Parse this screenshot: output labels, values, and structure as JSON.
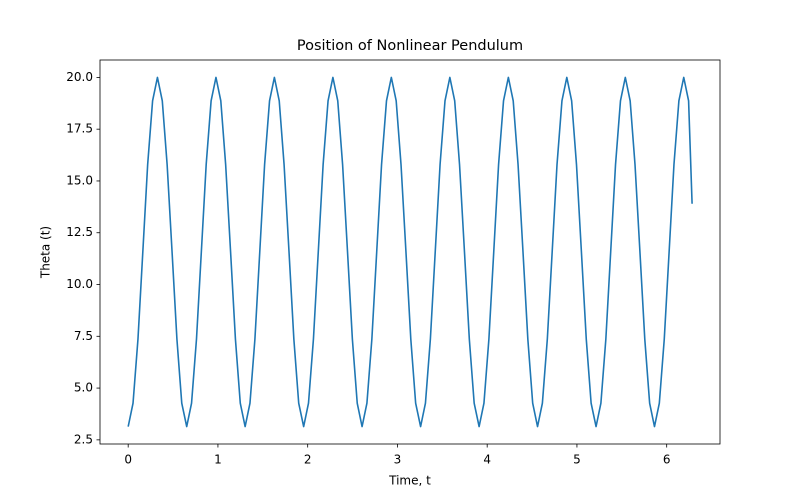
{
  "chart_data": {
    "type": "line",
    "title": "Position of Nonlinear Pendulum",
    "x_label": "Time, t",
    "y_label": "Theta (t)",
    "x": [
      0,
      0.054,
      0.109,
      0.163,
      0.217,
      0.272,
      0.326,
      0.38,
      0.434,
      0.489,
      0.543,
      0.597,
      0.652,
      0.706,
      0.761,
      0.815,
      0.869,
      0.924,
      0.978,
      1.032,
      1.086,
      1.141,
      1.195,
      1.249,
      1.303,
      1.357,
      1.412,
      1.466,
      1.52,
      1.575,
      1.629,
      1.683,
      1.737,
      1.792,
      1.846,
      1.9,
      1.955,
      2.009,
      2.064,
      2.118,
      2.172,
      2.227,
      2.281,
      2.335,
      2.389,
      2.444,
      2.498,
      2.552,
      2.606,
      2.66,
      2.715,
      2.769,
      2.823,
      2.878,
      2.932,
      2.986,
      3.04,
      3.095,
      3.149,
      3.203,
      3.258,
      3.312,
      3.367,
      3.421,
      3.475,
      3.53,
      3.584,
      3.638,
      3.692,
      3.747,
      3.801,
      3.855,
      3.91,
      3.964,
      4.019,
      4.073,
      4.127,
      4.182,
      4.236,
      4.29,
      4.344,
      4.399,
      4.453,
      4.507,
      4.561,
      4.615,
      4.67,
      4.724,
      4.778,
      4.833,
      4.887,
      4.941,
      4.995,
      5.05,
      5.104,
      5.158,
      5.213,
      5.267,
      5.322,
      5.376,
      5.43,
      5.485,
      5.539,
      5.593,
      5.647,
      5.702,
      5.756,
      5.81,
      5.864,
      5.918,
      5.973,
      6.027,
      6.081,
      6.136,
      6.19,
      6.244,
      6.283
    ],
    "series": [
      {
        "color": "#1f77b4",
        "values": [
          3.14,
          4.27,
          7.36,
          11.57,
          15.79,
          18.87,
          20.0,
          18.87,
          15.79,
          11.57,
          7.36,
          4.27,
          3.14,
          4.27,
          7.36,
          11.57,
          15.79,
          18.87,
          20.0,
          18.87,
          15.79,
          11.57,
          7.36,
          4.27,
          3.14,
          4.27,
          7.36,
          11.57,
          15.79,
          18.87,
          20.0,
          18.87,
          15.79,
          11.57,
          7.36,
          4.27,
          3.14,
          4.27,
          7.36,
          11.57,
          15.79,
          18.87,
          20.0,
          18.87,
          15.79,
          11.57,
          7.36,
          4.27,
          3.14,
          4.27,
          7.36,
          11.57,
          15.79,
          18.87,
          20.0,
          18.87,
          15.79,
          11.57,
          7.36,
          4.27,
          3.14,
          4.27,
          7.36,
          11.57,
          15.79,
          18.87,
          20.0,
          18.87,
          15.79,
          11.57,
          7.36,
          4.27,
          3.14,
          4.27,
          7.36,
          11.57,
          15.79,
          18.87,
          20.0,
          18.87,
          15.79,
          11.57,
          7.36,
          4.27,
          3.14,
          4.27,
          7.36,
          11.57,
          15.79,
          18.87,
          20.0,
          18.87,
          15.79,
          11.57,
          7.36,
          4.27,
          3.14,
          4.27,
          7.36,
          11.57,
          15.79,
          18.87,
          20.0,
          18.87,
          15.79,
          11.57,
          7.36,
          4.27,
          3.14,
          4.27,
          7.36,
          11.57,
          15.79,
          18.87,
          20.0,
          18.87,
          13.9
        ]
      }
    ],
    "xlim": [
      -0.314,
      6.594
    ],
    "ylim": [
      2.3,
      20.84
    ],
    "xticks": [
      0,
      1,
      2,
      3,
      4,
      5,
      6
    ],
    "yticks": [
      2.5,
      {
        "value": 5,
        "label": "5.0"
      },
      7.5,
      {
        "value": 10,
        "label": "10.0"
      },
      12.5,
      {
        "value": 15,
        "label": "15.0"
      },
      17.5,
      {
        "value": 20,
        "label": "20.0"
      }
    ],
    "grid": false
  }
}
